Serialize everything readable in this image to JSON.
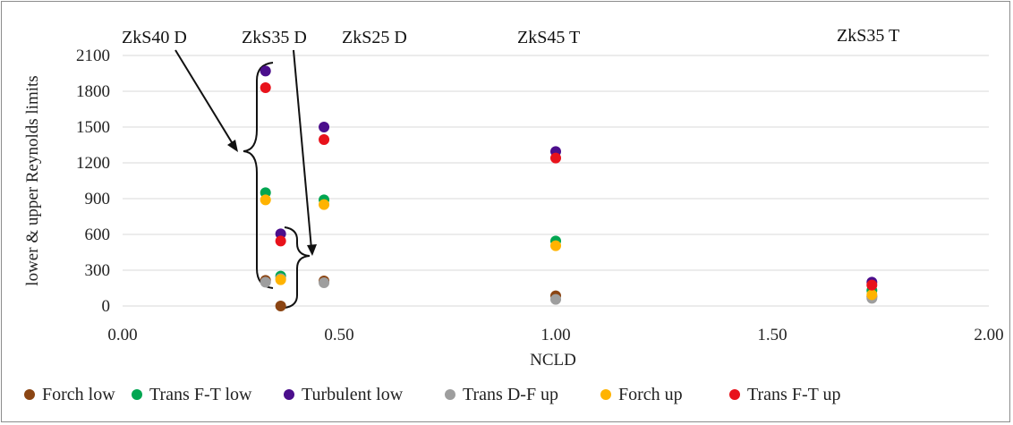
{
  "chart_data": {
    "type": "scatter",
    "title": "",
    "xlabel": "NCLD",
    "ylabel": "lower & upper Reynolds limits",
    "xlim": [
      0,
      2
    ],
    "ylim": [
      0,
      2100
    ],
    "x_ticks": [
      "0.00",
      "0.50",
      "1.00",
      "1.50",
      "2.00"
    ],
    "y_ticks": [
      "0",
      "300",
      "600",
      "900",
      "1200",
      "1500",
      "1800",
      "2100"
    ],
    "grid": "horizontal",
    "legend_position": "bottom",
    "series": [
      {
        "name": "Forch low",
        "color": "#8B4513",
        "x": [
          0.33,
          0.365,
          0.465,
          1.0,
          1.73
        ],
        "y": [
          215,
          0,
          210,
          85,
          80
        ]
      },
      {
        "name": "Trans F-T low",
        "color": "#00A651",
        "x": [
          0.33,
          0.365,
          0.465,
          1.0,
          1.73
        ],
        "y": [
          950,
          250,
          890,
          545,
          130
        ]
      },
      {
        "name": "Turbulent low",
        "color": "#4B0E8C",
        "x": [
          0.33,
          0.365,
          0.465,
          1.0,
          1.73
        ],
        "y": [
          1970,
          605,
          1500,
          1295,
          200
        ]
      },
      {
        "name": "Trans D-F up",
        "color": "#9E9E9E",
        "x": [
          0.33,
          0.365,
          0.465,
          1.0,
          1.73
        ],
        "y": [
          200,
          230,
          195,
          55,
          65
        ]
      },
      {
        "name": "Forch up",
        "color": "#FFB300",
        "x": [
          0.33,
          0.365,
          0.465,
          1.0,
          1.73
        ],
        "y": [
          890,
          220,
          850,
          505,
          95
        ]
      },
      {
        "name": "Trans F-T up",
        "color": "#E8121B",
        "x": [
          0.33,
          0.365,
          0.465,
          1.0,
          1.73
        ],
        "y": [
          1830,
          545,
          1395,
          1240,
          175
        ]
      }
    ],
    "annotations": [
      "ZkS40 D",
      "ZkS35 D",
      "ZkS25 D",
      "ZkS45 T",
      "ZkS35 T"
    ]
  }
}
